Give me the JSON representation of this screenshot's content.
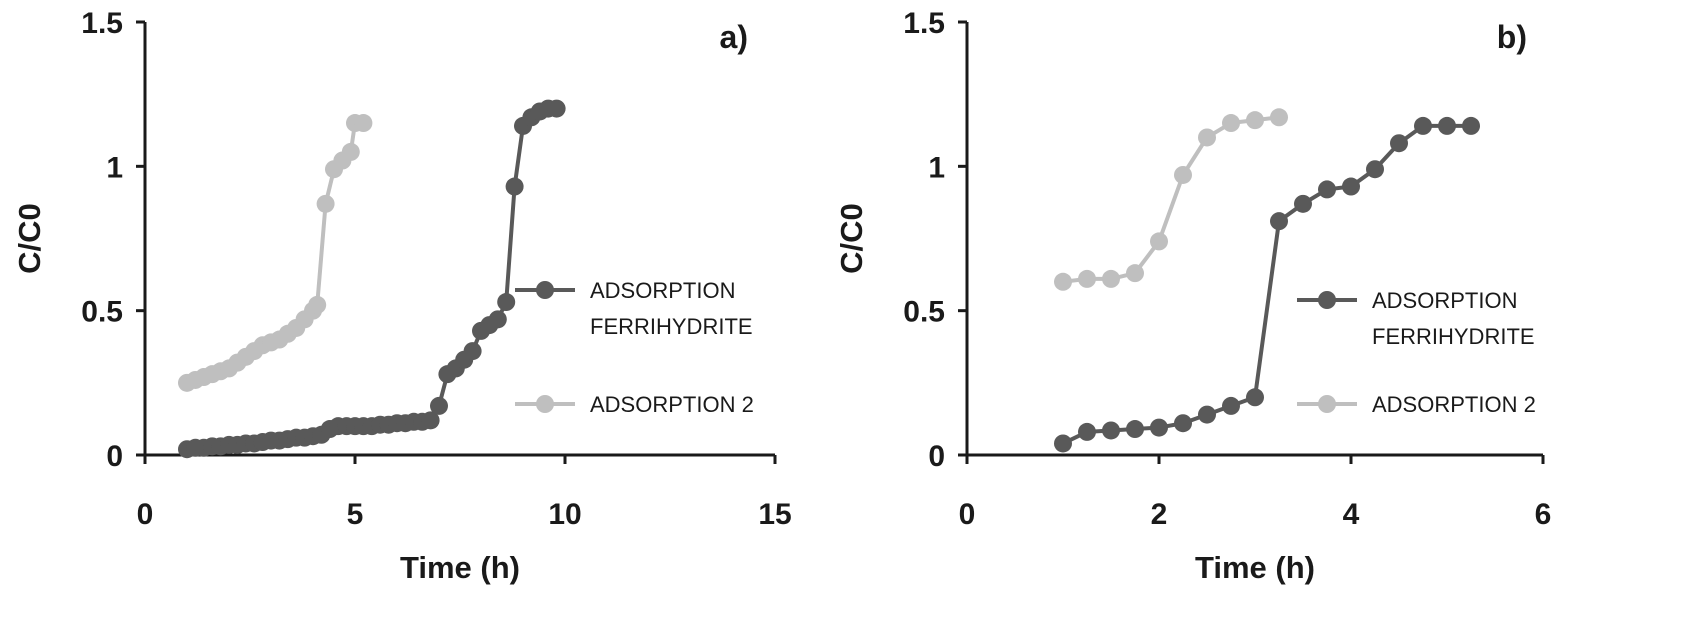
{
  "colors": {
    "axis": "#1a1a1a",
    "series_dark": "#595959",
    "series_light": "#bfbfbf"
  },
  "chart_data": [
    {
      "type": "line",
      "panel_label": "a)",
      "xlabel": "Time (h)",
      "ylabel": "C/C0",
      "xlim": [
        0,
        15
      ],
      "ylim": [
        0,
        1.5
      ],
      "xticks": [
        "0",
        "5",
        "10",
        "15"
      ],
      "yticks": [
        "0",
        "0.5",
        "1",
        "1.5"
      ],
      "grid": false,
      "legend_position": "right",
      "series": [
        {
          "name": "ADSORPTION FERRIHYDRITE",
          "legend_lines": [
            "ADSORPTION",
            "FERRIHYDRITE"
          ],
          "color": "#595959",
          "points": [
            [
              1.0,
              0.02
            ],
            [
              1.2,
              0.025
            ],
            [
              1.4,
              0.025
            ],
            [
              1.6,
              0.03
            ],
            [
              1.8,
              0.03
            ],
            [
              2.0,
              0.035
            ],
            [
              2.2,
              0.035
            ],
            [
              2.4,
              0.04
            ],
            [
              2.6,
              0.04
            ],
            [
              2.8,
              0.045
            ],
            [
              3.0,
              0.05
            ],
            [
              3.2,
              0.05
            ],
            [
              3.4,
              0.055
            ],
            [
              3.6,
              0.06
            ],
            [
              3.8,
              0.06
            ],
            [
              4.0,
              0.065
            ],
            [
              4.2,
              0.07
            ],
            [
              4.4,
              0.09
            ],
            [
              4.6,
              0.1
            ],
            [
              4.8,
              0.1
            ],
            [
              5.0,
              0.1
            ],
            [
              5.2,
              0.1
            ],
            [
              5.4,
              0.1
            ],
            [
              5.6,
              0.105
            ],
            [
              5.8,
              0.105
            ],
            [
              6.0,
              0.11
            ],
            [
              6.2,
              0.11
            ],
            [
              6.4,
              0.115
            ],
            [
              6.6,
              0.115
            ],
            [
              6.8,
              0.12
            ],
            [
              7.0,
              0.17
            ],
            [
              7.2,
              0.28
            ],
            [
              7.4,
              0.3
            ],
            [
              7.6,
              0.33
            ],
            [
              7.8,
              0.36
            ],
            [
              8.0,
              0.43
            ],
            [
              8.2,
              0.45
            ],
            [
              8.4,
              0.47
            ],
            [
              8.6,
              0.53
            ],
            [
              8.8,
              0.93
            ],
            [
              9.0,
              1.14
            ],
            [
              9.2,
              1.17
            ],
            [
              9.4,
              1.19
            ],
            [
              9.6,
              1.2
            ],
            [
              9.8,
              1.2
            ]
          ]
        },
        {
          "name": "ADSORPTION 2",
          "legend_lines": [
            "ADSORPTION 2"
          ],
          "color": "#bfbfbf",
          "points": [
            [
              1.0,
              0.25
            ],
            [
              1.2,
              0.26
            ],
            [
              1.4,
              0.27
            ],
            [
              1.6,
              0.28
            ],
            [
              1.8,
              0.29
            ],
            [
              2.0,
              0.3
            ],
            [
              2.2,
              0.32
            ],
            [
              2.4,
              0.34
            ],
            [
              2.6,
              0.36
            ],
            [
              2.8,
              0.38
            ],
            [
              3.0,
              0.39
            ],
            [
              3.2,
              0.4
            ],
            [
              3.4,
              0.42
            ],
            [
              3.6,
              0.44
            ],
            [
              3.8,
              0.47
            ],
            [
              4.0,
              0.5
            ],
            [
              4.1,
              0.52
            ],
            [
              4.3,
              0.87
            ],
            [
              4.5,
              0.99
            ],
            [
              4.7,
              1.02
            ],
            [
              4.9,
              1.05
            ],
            [
              5.0,
              1.15
            ],
            [
              5.2,
              1.15
            ]
          ]
        }
      ]
    },
    {
      "type": "line",
      "panel_label": "b)",
      "xlabel": "Time (h)",
      "ylabel": "C/C0",
      "xlim": [
        0,
        6
      ],
      "ylim": [
        0,
        1.5
      ],
      "xticks": [
        "0",
        "2",
        "4",
        "6"
      ],
      "yticks": [
        "0",
        "0.5",
        "1",
        "1.5"
      ],
      "grid": false,
      "legend_position": "right",
      "series": [
        {
          "name": "ADSORPTION FERRIHYDRITE",
          "legend_lines": [
            "ADSORPTION",
            "FERRIHYDRITE"
          ],
          "color": "#595959",
          "points": [
            [
              1.0,
              0.04
            ],
            [
              1.25,
              0.08
            ],
            [
              1.5,
              0.085
            ],
            [
              1.75,
              0.09
            ],
            [
              2.0,
              0.095
            ],
            [
              2.25,
              0.11
            ],
            [
              2.5,
              0.14
            ],
            [
              2.75,
              0.17
            ],
            [
              3.0,
              0.2
            ],
            [
              3.25,
              0.81
            ],
            [
              3.5,
              0.87
            ],
            [
              3.75,
              0.92
            ],
            [
              4.0,
              0.93
            ],
            [
              4.25,
              0.99
            ],
            [
              4.5,
              1.08
            ],
            [
              4.75,
              1.14
            ],
            [
              5.0,
              1.14
            ],
            [
              5.25,
              1.14
            ]
          ]
        },
        {
          "name": "ADSORPTION 2",
          "legend_lines": [
            "ADSORPTION 2"
          ],
          "color": "#bfbfbf",
          "points": [
            [
              1.0,
              0.6
            ],
            [
              1.25,
              0.61
            ],
            [
              1.5,
              0.61
            ],
            [
              1.75,
              0.63
            ],
            [
              2.0,
              0.74
            ],
            [
              2.25,
              0.97
            ],
            [
              2.5,
              1.1
            ],
            [
              2.75,
              1.15
            ],
            [
              3.0,
              1.16
            ],
            [
              3.25,
              1.17
            ]
          ]
        }
      ]
    }
  ]
}
